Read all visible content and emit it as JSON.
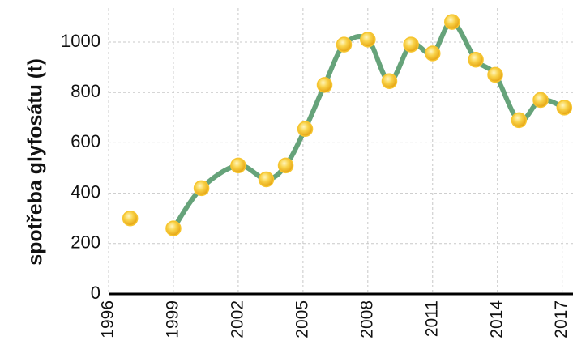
{
  "chart_data": {
    "type": "line",
    "y_label": "spotřeba glyfosátu (t)",
    "x": [
      1997,
      1998,
      1999,
      2000.3,
      2002,
      2003.3,
      2004.2,
      2005.1,
      2006,
      2006.9,
      2008,
      2009,
      2010,
      2011,
      2011.9,
      2013,
      2013.9,
      2015,
      2016,
      2017.1
    ],
    "series": [
      {
        "name": "spotřeba glyfosátu",
        "color": "#66a37a",
        "marker_color": "#f6c530",
        "values": [
          300,
          null,
          260,
          420,
          510,
          455,
          510,
          655,
          830,
          990,
          1010,
          845,
          990,
          955,
          1080,
          930,
          870,
          690,
          770,
          740
        ]
      }
    ],
    "xlim": [
      1996,
      2017.5
    ],
    "xticks": [
      1996,
      1999,
      2002,
      2005,
      2008,
      2011,
      2014,
      2017
    ],
    "ylim": [
      0,
      1135
    ],
    "yticks": [
      0,
      200,
      400,
      600,
      800,
      1000
    ],
    "grid": true
  }
}
